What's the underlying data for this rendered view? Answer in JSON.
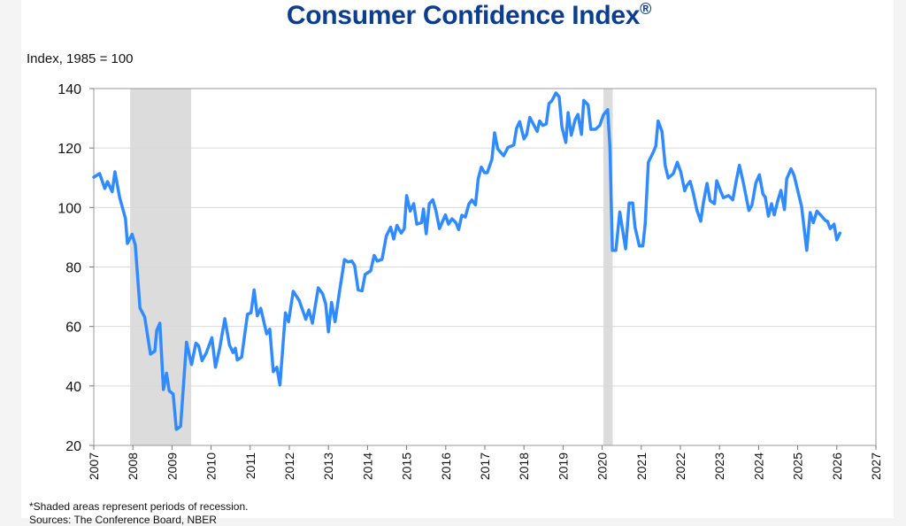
{
  "chart_data": {
    "type": "line",
    "title": "Consumer Confidence Index",
    "title_mark": "®",
    "ylabel": "Index, 1985 = 100",
    "xlabel": "",
    "xlim": [
      2007,
      2027
    ],
    "ylim": [
      20,
      140
    ],
    "y_ticks": [
      20,
      40,
      60,
      80,
      100,
      120,
      140
    ],
    "x_ticks": [
      "2007",
      "2008",
      "2009",
      "2010",
      "2011",
      "2012",
      "2013",
      "2014",
      "2015",
      "2016",
      "2017",
      "2018",
      "2019",
      "2020",
      "2021",
      "2022",
      "2023",
      "2024",
      "2025",
      "2026",
      "2027"
    ],
    "grid": "horizontal",
    "line_color": "#2f8bff",
    "recession_color": "#dcdcdc",
    "recessions": [
      [
        2007.93,
        2009.49
      ],
      [
        2020.03,
        2020.27
      ]
    ],
    "series": [
      {
        "points": [
          [
            2007.0,
            110.2
          ],
          [
            2007.15,
            111.4
          ],
          [
            2007.28,
            106.4
          ],
          [
            2007.35,
            108.7
          ],
          [
            2007.47,
            105.3
          ],
          [
            2007.54,
            112
          ],
          [
            2007.66,
            103.4
          ],
          [
            2007.81,
            96.3
          ],
          [
            2007.86,
            87.9
          ],
          [
            2007.98,
            91
          ],
          [
            2008.06,
            87.4
          ],
          [
            2008.18,
            66.2
          ],
          [
            2008.3,
            63.2
          ],
          [
            2008.45,
            50.7
          ],
          [
            2008.56,
            51.7
          ],
          [
            2008.61,
            58.7
          ],
          [
            2008.69,
            61.1
          ],
          [
            2008.78,
            38.8
          ],
          [
            2008.86,
            44.3
          ],
          [
            2008.93,
            38.3
          ],
          [
            2009.03,
            37.3
          ],
          [
            2009.11,
            25.4
          ],
          [
            2009.22,
            26.4
          ],
          [
            2009.37,
            54.7
          ],
          [
            2009.5,
            47.2
          ],
          [
            2009.61,
            54.4
          ],
          [
            2009.68,
            53.5
          ],
          [
            2009.77,
            48.5
          ],
          [
            2009.88,
            51.2
          ],
          [
            2010.02,
            56.2
          ],
          [
            2010.11,
            46.3
          ],
          [
            2010.22,
            52.7
          ],
          [
            2010.35,
            62.6
          ],
          [
            2010.47,
            53.7
          ],
          [
            2010.56,
            51.2
          ],
          [
            2010.62,
            52.7
          ],
          [
            2010.67,
            48.7
          ],
          [
            2010.78,
            49.7
          ],
          [
            2010.93,
            64.1
          ],
          [
            2011.02,
            64.6
          ],
          [
            2011.1,
            72.3
          ],
          [
            2011.18,
            63.6
          ],
          [
            2011.27,
            66.1
          ],
          [
            2011.42,
            57.5
          ],
          [
            2011.5,
            59.1
          ],
          [
            2011.59,
            44.8
          ],
          [
            2011.68,
            46.3
          ],
          [
            2011.76,
            40.3
          ],
          [
            2011.9,
            64.6
          ],
          [
            2011.98,
            61.6
          ],
          [
            2012.1,
            71.8
          ],
          [
            2012.25,
            68.8
          ],
          [
            2012.42,
            62.4
          ],
          [
            2012.5,
            65.6
          ],
          [
            2012.59,
            61.1
          ],
          [
            2012.74,
            73.0
          ],
          [
            2012.85,
            71.0
          ],
          [
            2012.93,
            67.6
          ],
          [
            2013.0,
            58.2
          ],
          [
            2013.08,
            68.1
          ],
          [
            2013.17,
            61.6
          ],
          [
            2013.28,
            71.5
          ],
          [
            2013.41,
            82.5
          ],
          [
            2013.5,
            81.7
          ],
          [
            2013.6,
            82.0
          ],
          [
            2013.67,
            80.5
          ],
          [
            2013.76,
            72.3
          ],
          [
            2013.86,
            72.0
          ],
          [
            2013.94,
            77.5
          ],
          [
            2014.08,
            78.7
          ],
          [
            2014.17,
            83.9
          ],
          [
            2014.25,
            82.0
          ],
          [
            2014.37,
            82.6
          ],
          [
            2014.48,
            90.4
          ],
          [
            2014.59,
            93.4
          ],
          [
            2014.67,
            89.4
          ],
          [
            2014.75,
            94.0
          ],
          [
            2014.86,
            91.4
          ],
          [
            2014.94,
            92.9
          ],
          [
            2015.0,
            104.0
          ],
          [
            2015.09,
            98.8
          ],
          [
            2015.18,
            101.3
          ],
          [
            2015.26,
            94.4
          ],
          [
            2015.38,
            94.9
          ],
          [
            2015.43,
            99.5
          ],
          [
            2015.5,
            91.2
          ],
          [
            2015.58,
            101.3
          ],
          [
            2015.67,
            102.6
          ],
          [
            2015.75,
            98.8
          ],
          [
            2015.84,
            92.9
          ],
          [
            2015.99,
            97.5
          ],
          [
            2016.07,
            94.4
          ],
          [
            2016.16,
            96.2
          ],
          [
            2016.26,
            94.9
          ],
          [
            2016.33,
            92.6
          ],
          [
            2016.41,
            97.4
          ],
          [
            2016.5,
            96.8
          ],
          [
            2016.59,
            101.1
          ],
          [
            2016.67,
            102.5
          ],
          [
            2016.76,
            100.9
          ],
          [
            2016.83,
            109.7
          ],
          [
            2016.91,
            113.6
          ],
          [
            2016.99,
            111.7
          ],
          [
            2017.06,
            111.7
          ],
          [
            2017.18,
            116.2
          ],
          [
            2017.25,
            125.1
          ],
          [
            2017.33,
            119.7
          ],
          [
            2017.48,
            117.4
          ],
          [
            2017.59,
            120.2
          ],
          [
            2017.74,
            121.0
          ],
          [
            2017.81,
            126.6
          ],
          [
            2017.89,
            128.9
          ],
          [
            2018.0,
            123.1
          ],
          [
            2018.07,
            124.6
          ],
          [
            2018.15,
            130.3
          ],
          [
            2018.34,
            125.6
          ],
          [
            2018.4,
            129.1
          ],
          [
            2018.48,
            127.6
          ],
          [
            2018.57,
            128.1
          ],
          [
            2018.64,
            135.0
          ],
          [
            2018.71,
            135.8
          ],
          [
            2018.82,
            138.5
          ],
          [
            2018.9,
            137.2
          ],
          [
            2018.97,
            127.1
          ],
          [
            2019.07,
            121.9
          ],
          [
            2019.13,
            131.9
          ],
          [
            2019.21,
            124.3
          ],
          [
            2019.31,
            129.6
          ],
          [
            2019.38,
            131.3
          ],
          [
            2019.47,
            124.6
          ],
          [
            2019.53,
            136.0
          ],
          [
            2019.64,
            134.5
          ],
          [
            2019.71,
            126.3
          ],
          [
            2019.83,
            126.3
          ],
          [
            2019.94,
            127.6
          ],
          [
            2020.03,
            131.1
          ],
          [
            2020.14,
            132.9
          ],
          [
            2020.2,
            120.2
          ],
          [
            2020.26,
            85.6
          ],
          [
            2020.35,
            85.6
          ],
          [
            2020.45,
            98.5
          ],
          [
            2020.6,
            86.1
          ],
          [
            2020.69,
            101.5
          ],
          [
            2020.78,
            101.5
          ],
          [
            2020.84,
            93.4
          ],
          [
            2020.95,
            87.1
          ],
          [
            2021.04,
            87.1
          ],
          [
            2021.1,
            94.4
          ],
          [
            2021.18,
            115.2
          ],
          [
            2021.31,
            118.7
          ],
          [
            2021.37,
            120.7
          ],
          [
            2021.43,
            129.1
          ],
          [
            2021.53,
            125.6
          ],
          [
            2021.61,
            114.2
          ],
          [
            2021.69,
            109.9
          ],
          [
            2021.82,
            111.4
          ],
          [
            2021.92,
            115.2
          ],
          [
            2022.01,
            112.0
          ],
          [
            2022.11,
            105.6
          ],
          [
            2022.16,
            107.3
          ],
          [
            2022.25,
            108.8
          ],
          [
            2022.33,
            104.8
          ],
          [
            2022.42,
            99.2
          ],
          [
            2022.52,
            95.4
          ],
          [
            2022.59,
            101.8
          ],
          [
            2022.68,
            108.1
          ],
          [
            2022.76,
            102.3
          ],
          [
            2022.87,
            101.3
          ],
          [
            2022.93,
            109.0
          ],
          [
            2023.02,
            105.8
          ],
          [
            2023.1,
            103.3
          ],
          [
            2023.23,
            104.0
          ],
          [
            2023.34,
            102.6
          ],
          [
            2023.44,
            109.7
          ],
          [
            2023.51,
            114.2
          ],
          [
            2023.61,
            108.3
          ],
          [
            2023.75,
            99.0
          ],
          [
            2023.83,
            100.8
          ],
          [
            2023.93,
            108.3
          ],
          [
            2024.02,
            111.0
          ],
          [
            2024.11,
            104.5
          ],
          [
            2024.17,
            103.5
          ],
          [
            2024.25,
            97.1
          ],
          [
            2024.33,
            101.3
          ],
          [
            2024.4,
            97.5
          ],
          [
            2024.49,
            102.3
          ],
          [
            2024.57,
            105.8
          ],
          [
            2024.66,
            99.3
          ],
          [
            2024.72,
            109.7
          ],
          [
            2024.83,
            113.0
          ],
          [
            2024.91,
            110.7
          ],
          [
            2025.1,
            100.3
          ],
          [
            2025.23,
            85.6
          ],
          [
            2025.32,
            98.3
          ],
          [
            2025.4,
            94.9
          ],
          [
            2025.49,
            98.8
          ],
          [
            2025.61,
            97.1
          ],
          [
            2025.71,
            95.6
          ],
          [
            2025.76,
            95.4
          ],
          [
            2025.83,
            92.9
          ],
          [
            2025.93,
            94.4
          ],
          [
            2026.0,
            89.1
          ],
          [
            2026.08,
            91.4
          ]
        ]
      }
    ]
  },
  "footnotes": {
    "recession_note": "*Shaded areas represent periods of recession.",
    "source": "Sources: The Conference Board, NBER"
  }
}
